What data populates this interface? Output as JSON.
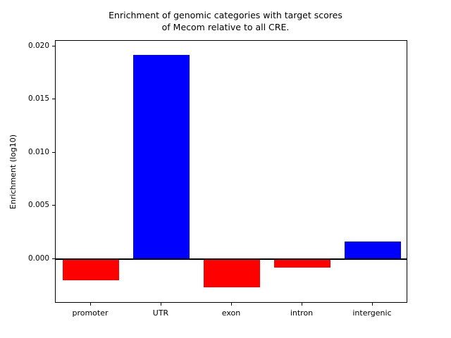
{
  "title_line1": "Enrichment of genomic categories with target scores",
  "title_line2": "of Mecom relative to all CRE.",
  "chart_data": {
    "type": "bar",
    "title": "Enrichment of genomic categories with target scores of Mecom relative to all CRE.",
    "categories": [
      "promoter",
      "UTR",
      "exon",
      "intron",
      "intergenic"
    ],
    "values": [
      -0.002,
      0.0192,
      -0.0027,
      -0.0008,
      0.0016
    ],
    "bar_colors": [
      "#ff0000",
      "#0000ff",
      "#ff0000",
      "#ff0000",
      "#0000ff"
    ],
    "positive_color": "#0000ff",
    "negative_color": "#ff0000",
    "xlabel": "",
    "ylabel": "Enrichment (log10)",
    "ylim": [
      -0.0042,
      0.0205
    ],
    "yticks": [
      0.0,
      0.005,
      0.01,
      0.015,
      0.02
    ],
    "ytick_labels": [
      "0.000",
      "0.005",
      "0.010",
      "0.015",
      "0.020"
    ],
    "grid": false,
    "legend": "none",
    "zero_line": true,
    "bar_width_fraction": 0.8
  }
}
